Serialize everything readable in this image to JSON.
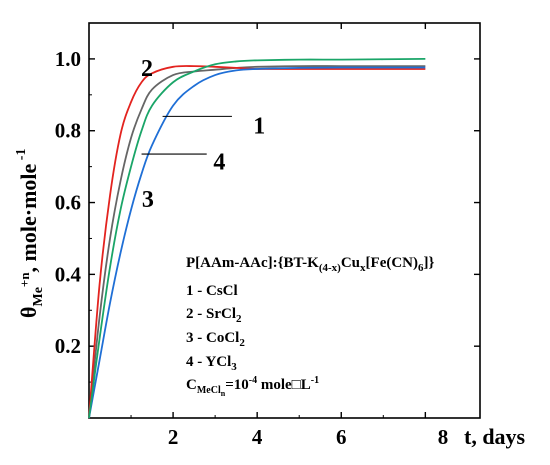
{
  "chart_data": {
    "type": "line",
    "title": "",
    "xlabel": "t, days",
    "ylabel": "θMe+n, mole·mole-1",
    "xlim": [
      0,
      9.3
    ],
    "ylim": [
      0,
      1.1
    ],
    "x_ticks": [
      2,
      4,
      6
    ],
    "x_tick_labels": [
      "2",
      "4",
      "6"
    ],
    "x_end_tick_label": "8",
    "y_ticks": [
      0.2,
      0.4,
      0.6,
      0.8,
      1.0
    ],
    "y_tick_labels": [
      "0.2",
      "0.4",
      "0.6",
      "0.8",
      "1.0"
    ],
    "grid": false,
    "legend_placement": "bottom-right",
    "series": [
      {
        "label": "1",
        "color": "#666666",
        "x": [
          0,
          0.25,
          0.5,
          0.75,
          1,
          1.25,
          1.5,
          2,
          2.5,
          3,
          3.5,
          4,
          5,
          6,
          7,
          8
        ],
        "y": [
          0.0,
          0.28,
          0.5,
          0.66,
          0.78,
          0.86,
          0.915,
          0.955,
          0.965,
          0.97,
          0.975,
          0.978,
          0.98,
          0.98,
          0.98,
          0.98
        ]
      },
      {
        "label": "2",
        "color": "#e3231f",
        "x": [
          0,
          0.25,
          0.5,
          0.75,
          1,
          1.25,
          1.5,
          2,
          2.5,
          3,
          3.5,
          4,
          5,
          6,
          7,
          8
        ],
        "y": [
          0.0,
          0.37,
          0.62,
          0.79,
          0.88,
          0.935,
          0.96,
          0.978,
          0.98,
          0.978,
          0.975,
          0.972,
          0.972,
          0.972,
          0.972,
          0.972
        ]
      },
      {
        "label": "3",
        "color": "#1f6fd6",
        "x": [
          0,
          0.25,
          0.5,
          0.75,
          1,
          1.25,
          1.5,
          2,
          2.5,
          3,
          3.5,
          4,
          5,
          6,
          7,
          8
        ],
        "y": [
          0.0,
          0.16,
          0.32,
          0.46,
          0.58,
          0.68,
          0.76,
          0.87,
          0.925,
          0.955,
          0.968,
          0.972,
          0.975,
          0.976,
          0.976,
          0.976
        ]
      },
      {
        "label": "4",
        "color": "#1aa568",
        "x": [
          0,
          0.25,
          0.5,
          0.75,
          1,
          1.25,
          1.5,
          2,
          2.5,
          3,
          3.5,
          4,
          5,
          6,
          7,
          8
        ],
        "y": [
          0.0,
          0.22,
          0.42,
          0.58,
          0.7,
          0.8,
          0.87,
          0.935,
          0.965,
          0.985,
          0.993,
          0.996,
          0.998,
          0.998,
          0.999,
          1.0
        ]
      }
    ],
    "curve_labels": [
      {
        "text": "1",
        "x": 4.05,
        "y": 0.815,
        "leader_from": [
          1.75,
          0.84
        ],
        "leader_to": [
          3.4,
          0.84
        ]
      },
      {
        "text": "2",
        "x": 1.38,
        "y": 0.975
      },
      {
        "text": "3",
        "x": 1.4,
        "y": 0.61
      },
      {
        "text": "4",
        "x": 3.1,
        "y": 0.715,
        "leader_from": [
          1.25,
          0.735
        ],
        "leader_to": [
          2.8,
          0.735
        ]
      }
    ],
    "legend": {
      "title": "P[AAm-AAc]:{BT-K(4-x)Cux[Fe(CN)6]}",
      "entries": [
        "1 - CsCl",
        "2 - SrCl2",
        "3 - CoCl2",
        "4 - YCl3"
      ],
      "note": "CMeCln=10-4 mole□L-1"
    }
  }
}
